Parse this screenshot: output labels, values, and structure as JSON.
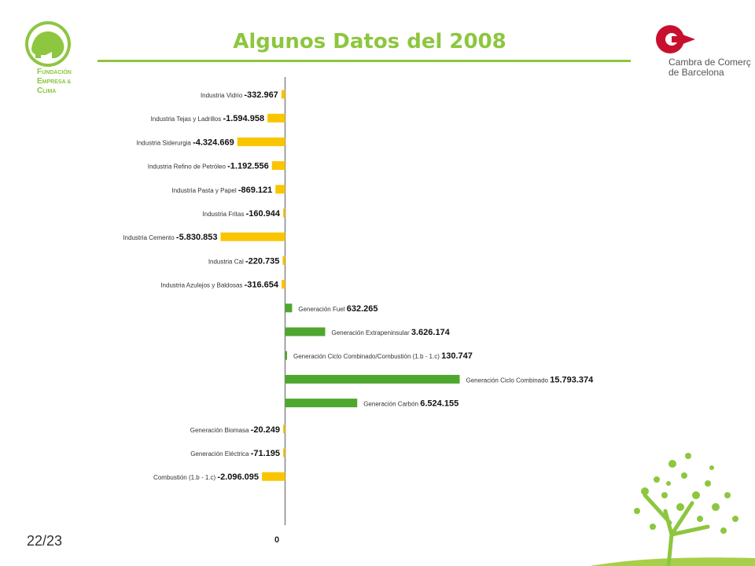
{
  "page": {
    "title": "Algunos Datos del 2008",
    "page_number": "22/23"
  },
  "logos": {
    "left_lines": [
      {
        "initial": "F",
        "rest": "UNDACIÓN"
      },
      {
        "initial": "E",
        "rest": "MPRESA &"
      },
      {
        "initial": "C",
        "rest": "LIMA"
      }
    ],
    "right_line1": "Cambra de Comerç",
    "right_line2": "de Barcelona"
  },
  "colors": {
    "negative": "#f9c500",
    "positive": "#4ea72e",
    "title": "#8dc63f"
  },
  "chart_data": {
    "type": "bar",
    "orientation": "horizontal",
    "title": "",
    "zero_label": "0",
    "categories": [
      "Industria Vidrio",
      "Industria Tejas y Ladrillos",
      "Industria Siderurgia",
      "Industria Refino de Petróleo",
      "Industria Pasta y Papel",
      "Industria Fritas",
      "Industria Cemento",
      "Industria Cal",
      "Industria Azulejos y Baldosas",
      "Generación Fuel",
      "Generación Extrapeninsular",
      "Generación Ciclo Combinado/Combustión (1.b - 1.c)",
      "Generación Ciclo Combinado",
      "Generación Carbón",
      "Generación Biomasa",
      "Generación Eléctrica",
      "Combustión (1.b - 1.c)"
    ],
    "values": [
      -332967,
      -1594958,
      -4324669,
      -1192556,
      -869121,
      -160944,
      -5830853,
      -220735,
      -316654,
      632265,
      3626174,
      130747,
      15793374,
      6524155,
      -20249,
      -71195,
      -2096095
    ],
    "value_labels": [
      "-332.967",
      "-1.594.958",
      "-4.324.669",
      "-1.192.556",
      "-869.121",
      "-160.944",
      "-5.830.853",
      "-220.735",
      "-316.654",
      "632.265",
      "3.626.174",
      "130.747",
      "15.793.374",
      "6.524.155",
      "-20.249",
      "-71.195",
      "-2.096.095"
    ],
    "category_gap_before_index": [
      14
    ]
  }
}
